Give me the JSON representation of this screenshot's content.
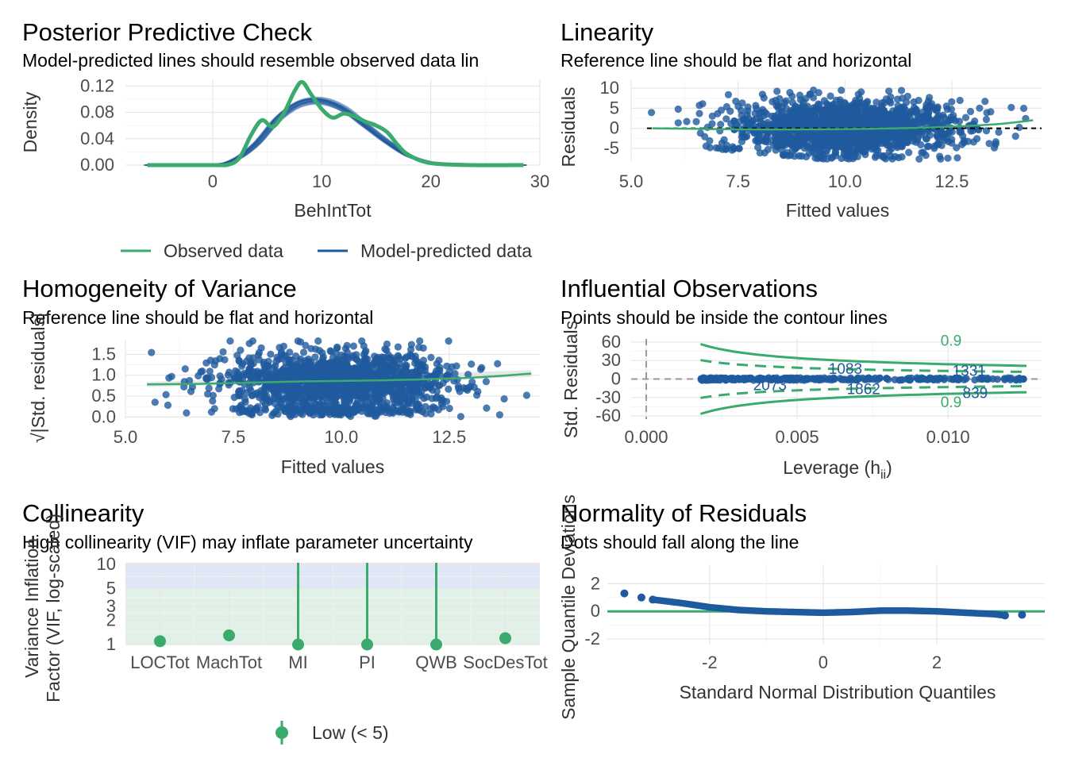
{
  "colors": {
    "green": "#3aaa6e",
    "blue": "#1f5a9e",
    "grid": "#e6e6e6",
    "text": "#4d4d4d"
  },
  "chart_data": [
    {
      "id": "ppc",
      "type": "line",
      "title": "Posterior Predictive Check",
      "subtitle": "Model-predicted lines should resemble observed data lin",
      "xlabel": "BehIntTot",
      "ylabel": "Density",
      "xlim": [
        -8,
        30
      ],
      "ylim": [
        0,
        0.13
      ],
      "xticks": [
        "0",
        "10",
        "20",
        "30"
      ],
      "yticks": [
        "0.00",
        "0.04",
        "0.08",
        "0.12"
      ],
      "legend": [
        "Observed data",
        "Model-predicted data"
      ],
      "legend_position": "bottom",
      "series": [
        {
          "name": "Observed data",
          "x": [
            -6,
            0,
            1.5,
            2.5,
            3.5,
            4.5,
            5.5,
            6.5,
            7.5,
            8.2,
            9,
            10,
            11,
            12,
            13,
            14,
            15,
            16,
            17,
            18,
            20,
            24,
            28.5
          ],
          "y": [
            0,
            0,
            0.001,
            0.012,
            0.045,
            0.068,
            0.058,
            0.078,
            0.112,
            0.126,
            0.108,
            0.085,
            0.072,
            0.078,
            0.074,
            0.066,
            0.06,
            0.05,
            0.03,
            0.015,
            0.003,
            0,
            0
          ]
        },
        {
          "name": "Model-predicted data",
          "x": [
            -6,
            0,
            2,
            4,
            6,
            8,
            10,
            12,
            14,
            16,
            18,
            20,
            22,
            24,
            28.5
          ],
          "y": [
            0,
            0.001,
            0.008,
            0.032,
            0.07,
            0.093,
            0.097,
            0.085,
            0.06,
            0.035,
            0.014,
            0.004,
            0.001,
            0,
            0
          ]
        }
      ]
    },
    {
      "id": "linearity",
      "type": "scatter",
      "title": "Linearity",
      "subtitle": "Reference line should be flat and horizontal",
      "xlabel": "Fitted values",
      "ylabel": "Residuals",
      "xlim": [
        5,
        14.6
      ],
      "ylim": [
        -8,
        12
      ],
      "xticks": [
        "5.0",
        "7.5",
        "10.0",
        "12.5"
      ],
      "yticks": [
        "-5",
        "0",
        "5",
        "10"
      ],
      "smooth": {
        "x": [
          5.5,
          8,
          10,
          12,
          13.5,
          14.4
        ],
        "y": [
          0,
          -0.3,
          -0.2,
          0.2,
          1,
          2
        ]
      }
    },
    {
      "id": "homogeneity",
      "type": "scatter",
      "title": "Homogeneity of Variance",
      "subtitle": "Reference line should be flat and horizontal",
      "xlabel": "Fitted values",
      "ylabel": "√|Std. residuals|",
      "xlim": [
        5,
        14.6
      ],
      "ylim": [
        -0.05,
        1.85
      ],
      "xticks": [
        "5.0",
        "7.5",
        "10.0",
        "12.5"
      ],
      "yticks": [
        "0.0",
        "0.5",
        "1.0",
        "1.5"
      ],
      "smooth": {
        "x": [
          5.5,
          7,
          9,
          11,
          13,
          14.4
        ],
        "y": [
          0.78,
          0.8,
          0.85,
          0.88,
          0.94,
          1.04
        ]
      }
    },
    {
      "id": "influential",
      "type": "scatter",
      "title": "Influential Observations",
      "subtitle": "Points should be inside the contour lines",
      "xlabel": "Leverage (h",
      "xlabel_sub": "ii",
      "xlabel_end": ")",
      "ylabel": "Std. Residuals",
      "xlim": [
        -0.0005,
        0.0131
      ],
      "ylim": [
        -65,
        65
      ],
      "xticks": [
        "0.000",
        "0.005",
        "0.010"
      ],
      "yticks": [
        "-60",
        "-30",
        "0",
        "30",
        "60"
      ],
      "contour_label": "0.9",
      "point_labels": [
        {
          "text": "1083",
          "x": 0.0066,
          "y": 16
        },
        {
          "text": "1331",
          "x": 0.0107,
          "y": 13
        },
        {
          "text": "2073",
          "x": 0.0041,
          "y": -10
        },
        {
          "text": "1862",
          "x": 0.0072,
          "y": -17
        },
        {
          "text": "839",
          "x": 0.0109,
          "y": -23
        }
      ]
    },
    {
      "id": "collinearity",
      "type": "scatter",
      "title": "Collinearity",
      "subtitle": "High collinearity (VIF) may inflate parameter uncertainty",
      "ylabel": "Variance Inflation Factor (VIF, log-scaled)",
      "ylabel_lines": [
        "Variance Inflation",
        "Factor (VIF, log-scaled)"
      ],
      "categories": [
        "LOCTot",
        "MachTot",
        "MI",
        "PI",
        "QWB",
        "SocDesTot"
      ],
      "values": [
        1.1,
        1.3,
        1.0,
        1.0,
        1.0,
        1.2
      ],
      "ylim": [
        1,
        10.5
      ],
      "yscale": "log",
      "yticks": [
        "1",
        "2",
        "3",
        "5",
        "10"
      ],
      "legend": [
        "Low (< 5)"
      ],
      "legend_position": "bottom"
    },
    {
      "id": "normality",
      "type": "scatter",
      "title": "Normality of Residuals",
      "subtitle": "Dots should fall along the line",
      "xlabel": "Standard Normal Distribution Quantiles",
      "ylabel": "Sample Quantile Deviations",
      "xlim": [
        -3.8,
        3.9
      ],
      "ylim": [
        -2.4,
        3.4
      ],
      "xticks": [
        "-2",
        "0",
        "2"
      ],
      "yticks": [
        "-2",
        "0",
        "2"
      ]
    }
  ]
}
